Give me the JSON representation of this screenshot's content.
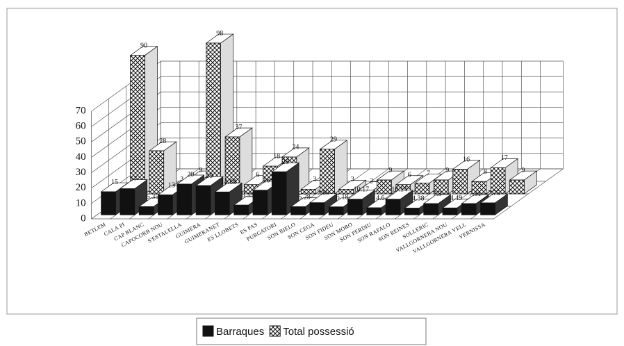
{
  "chart_data": {
    "type": "bar3d",
    "categories": [
      "BETLEM",
      "CALA PI",
      "CAP BLANC",
      "CAPOCORB NOU",
      "S'ESTALELLA",
      "GUIMERA",
      "GUIMERANET",
      "ES LLOBETS",
      "ES PAS",
      "PURGATORI",
      "SON BIELO",
      "SON CEGA",
      "SON FIDEU",
      "SON MORO",
      "SON PERDIU",
      "SON RAFALO",
      "SON REINES",
      "SOLLERIC",
      "VALLGORNERA NOU",
      "VALLGORNERA VELL",
      "VERNISSA"
    ],
    "series": [
      {
        "name": "Barraques",
        "color": "#111111",
        "values": [
          15,
          17,
          5.35,
          13,
          20,
          19,
          14.88,
          6.35,
          16,
          28,
          5.28,
          7.89,
          5.18,
          10.17,
          4.6,
          10.14,
          4.38,
          7.3,
          4.49,
          7.31,
          7.75
        ]
      },
      {
        "name": "Total possessió",
        "color": "#ffffff",
        "values": [
          90,
          28,
          3,
          9,
          98,
          37,
          6,
          18,
          24,
          3,
          29,
          3,
          2,
          9,
          6,
          7,
          9,
          16,
          8,
          17,
          9
        ]
      }
    ],
    "ylim": [
      0,
      70
    ],
    "yticks": [
      0,
      10,
      20,
      30,
      40,
      50,
      60,
      70
    ],
    "grid": true,
    "legend": "bottom"
  }
}
